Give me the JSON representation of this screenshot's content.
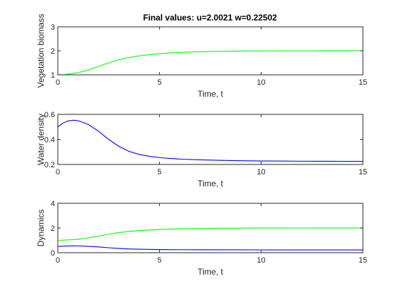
{
  "figure": {
    "title": "Final values: u=2.0021  w=0.22502"
  },
  "chart_data": [
    {
      "type": "line",
      "xlabel": "Time, t",
      "ylabel": "Vegetation biomass",
      "xlim": [
        0,
        15
      ],
      "ylim": [
        1,
        3
      ],
      "xticks": [
        "0",
        "5",
        "10",
        "15"
      ],
      "yticks": [
        "1",
        "2",
        "3"
      ],
      "grid": false,
      "series": [
        {
          "color": "#00ff00",
          "x": [
            0,
            0.5,
            1,
            1.5,
            2,
            2.5,
            3,
            3.5,
            4,
            4.5,
            5,
            5.5,
            6,
            6.5,
            7,
            8,
            9,
            10,
            11,
            12,
            13,
            14,
            15
          ],
          "y": [
            1.0,
            1.03,
            1.09,
            1.2,
            1.35,
            1.5,
            1.63,
            1.72,
            1.79,
            1.84,
            1.88,
            1.91,
            1.93,
            1.95,
            1.96,
            1.98,
            1.99,
            1.995,
            1.998,
            2.0,
            2.001,
            2.002,
            2.0021
          ]
        }
      ]
    },
    {
      "type": "line",
      "xlabel": "Time, t",
      "ylabel": "Water density",
      "xlim": [
        0,
        15
      ],
      "ylim": [
        0.2,
        0.6
      ],
      "xticks": [
        "0",
        "5",
        "10",
        "15"
      ],
      "yticks": [
        "0.2",
        "0.4",
        "0.6"
      ],
      "grid": false,
      "series": [
        {
          "color": "#0000ff",
          "x": [
            0,
            0.25,
            0.5,
            0.75,
            1,
            1.5,
            2,
            2.5,
            3,
            3.5,
            4,
            4.5,
            5,
            5.5,
            6,
            7,
            8,
            9,
            10,
            11,
            12,
            13,
            14,
            15
          ],
          "y": [
            0.5,
            0.53,
            0.547,
            0.553,
            0.55,
            0.52,
            0.465,
            0.4,
            0.345,
            0.305,
            0.28,
            0.265,
            0.255,
            0.248,
            0.243,
            0.237,
            0.233,
            0.23,
            0.228,
            0.227,
            0.226,
            0.2255,
            0.2252,
            0.22502
          ]
        }
      ]
    },
    {
      "type": "line",
      "xlabel": "Time, t",
      "ylabel": "Dynamics",
      "xlim": [
        0,
        15
      ],
      "ylim": [
        0,
        4
      ],
      "xticks": [
        "0",
        "5",
        "10",
        "15"
      ],
      "yticks": [
        "0",
        "2",
        "4"
      ],
      "grid": false,
      "series": [
        {
          "color": "#00ff00",
          "x": [
            0,
            0.5,
            1,
            1.5,
            2,
            2.5,
            3,
            3.5,
            4,
            4.5,
            5,
            5.5,
            6,
            6.5,
            7,
            8,
            9,
            10,
            11,
            12,
            13,
            14,
            15
          ],
          "y": [
            1.0,
            1.03,
            1.09,
            1.2,
            1.35,
            1.5,
            1.63,
            1.72,
            1.79,
            1.84,
            1.88,
            1.91,
            1.93,
            1.95,
            1.96,
            1.98,
            1.99,
            1.995,
            1.998,
            2.0,
            2.001,
            2.002,
            2.0021
          ]
        },
        {
          "color": "#0000ff",
          "x": [
            0,
            0.25,
            0.5,
            0.75,
            1,
            1.5,
            2,
            2.5,
            3,
            3.5,
            4,
            4.5,
            5,
            5.5,
            6,
            7,
            8,
            9,
            10,
            11,
            12,
            13,
            14,
            15
          ],
          "y": [
            0.5,
            0.53,
            0.547,
            0.553,
            0.55,
            0.52,
            0.465,
            0.4,
            0.345,
            0.305,
            0.28,
            0.265,
            0.255,
            0.248,
            0.243,
            0.237,
            0.233,
            0.23,
            0.228,
            0.227,
            0.226,
            0.2255,
            0.2252,
            0.22502
          ]
        }
      ]
    }
  ]
}
